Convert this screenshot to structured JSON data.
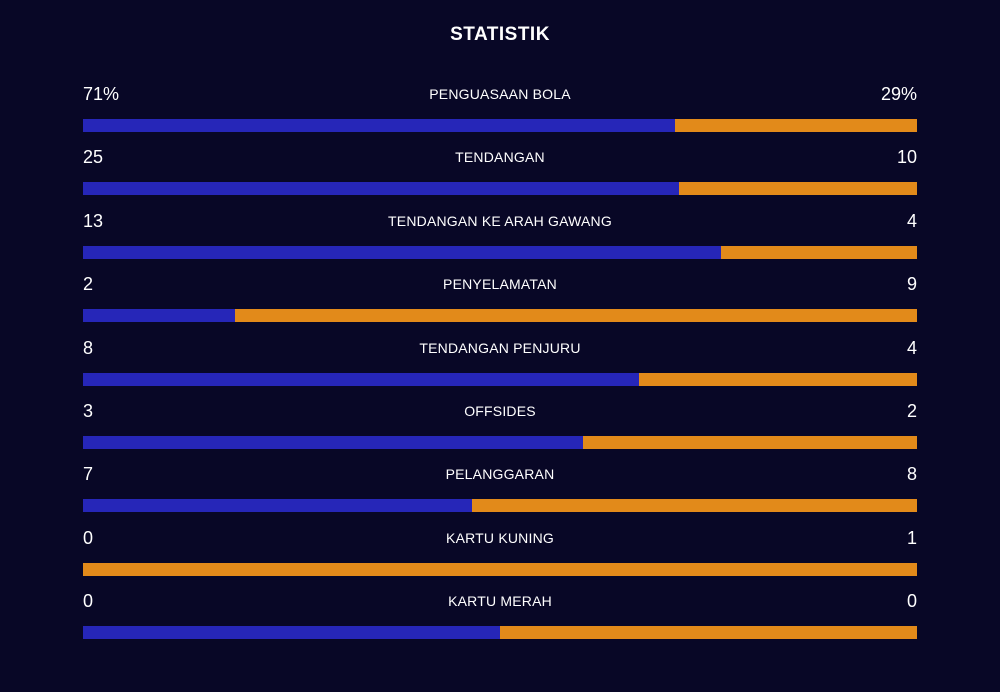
{
  "title": "STATISTIK",
  "colors": {
    "background": "#080726",
    "home": "#2626b8",
    "away": "#e28a1a"
  },
  "stats": [
    {
      "label": "PENGUASAAN BOLA",
      "home": "71%",
      "away": "29%",
      "home_value": 71,
      "away_value": 29
    },
    {
      "label": "TENDANGAN",
      "home": "25",
      "away": "10",
      "home_value": 25,
      "away_value": 10
    },
    {
      "label": "TENDANGAN KE ARAH GAWANG",
      "home": "13",
      "away": "4",
      "home_value": 13,
      "away_value": 4
    },
    {
      "label": "PENYELAMATAN",
      "home": "2",
      "away": "9",
      "home_value": 2,
      "away_value": 9
    },
    {
      "label": "TENDANGAN PENJURU",
      "home": "8",
      "away": "4",
      "home_value": 8,
      "away_value": 4
    },
    {
      "label": "OFFSIDES",
      "home": "3",
      "away": "2",
      "home_value": 3,
      "away_value": 2
    },
    {
      "label": "PELANGGARAN",
      "home": "7",
      "away": "8",
      "home_value": 7,
      "away_value": 8
    },
    {
      "label": "KARTU KUNING",
      "home": "0",
      "away": "1",
      "home_value": 0,
      "away_value": 1
    },
    {
      "label": "KARTU MERAH",
      "home": "0",
      "away": "0",
      "home_value": 0,
      "away_value": 0
    }
  ]
}
